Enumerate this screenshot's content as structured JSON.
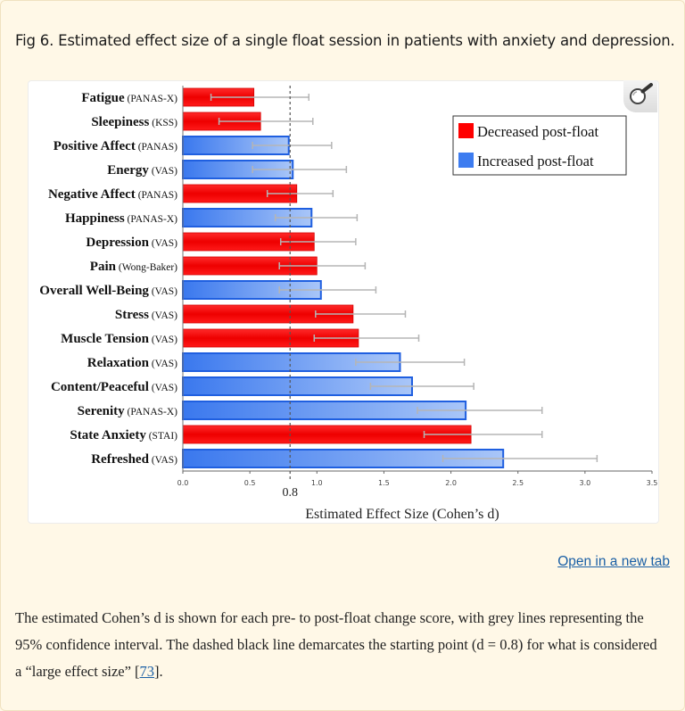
{
  "caption": {
    "title": "Fig 6. Estimated effect size of a single float session in patients with anxiety and depression.",
    "body_before_ref": "The estimated Cohen’s d is shown for each pre- to post-float change score, with grey lines representing the 95% confidence interval. The dashed black line demarcates the starting point (d = 0.8) for what is considered a “large effect size” [",
    "ref": "73",
    "body_after_ref": "]."
  },
  "open_link": "Open in a new tab",
  "zoom_icon": "magnifier-icon",
  "colors": {
    "decreased": "#ff0000",
    "increased": "#3d7cf0",
    "ci": "#b5b5b5",
    "refline": "#555555"
  },
  "chart_data": {
    "type": "bar",
    "orientation": "horizontal",
    "xlabel": "Estimated Effect Size (Cohen’s d)",
    "xlim": [
      0,
      3.5
    ],
    "xticks": [
      "0.0",
      "0.5",
      "1.0",
      "1.5",
      "2.0",
      "2.5",
      "3.0",
      "3.5"
    ],
    "reference_line": {
      "value": 0.8,
      "label": "0.8",
      "style": "dashed"
    },
    "legend": {
      "position": "top-right",
      "entries": [
        "Decreased post-float",
        "Increased post-float"
      ]
    },
    "bars": [
      {
        "label": "Fatigue",
        "scale": "(PANAS-X)",
        "value": 0.53,
        "ci": [
          0.21,
          0.94
        ],
        "direction": "decreased"
      },
      {
        "label": "Sleepiness",
        "scale": "(KSS)",
        "value": 0.58,
        "ci": [
          0.27,
          0.97
        ],
        "direction": "decreased"
      },
      {
        "label": "Positive Affect",
        "scale": "(PANAS)",
        "value": 0.79,
        "ci": [
          0.52,
          1.11
        ],
        "direction": "increased"
      },
      {
        "label": "Energy",
        "scale": "(VAS)",
        "value": 0.82,
        "ci": [
          0.52,
          1.22
        ],
        "direction": "increased"
      },
      {
        "label": "Negative Affect",
        "scale": "(PANAS)",
        "value": 0.85,
        "ci": [
          0.63,
          1.12
        ],
        "direction": "decreased"
      },
      {
        "label": "Happiness",
        "scale": "(PANAS-X)",
        "value": 0.96,
        "ci": [
          0.69,
          1.3
        ],
        "direction": "increased"
      },
      {
        "label": "Depression",
        "scale": "(VAS)",
        "value": 0.98,
        "ci": [
          0.73,
          1.29
        ],
        "direction": "decreased"
      },
      {
        "label": "Pain",
        "scale": "(Wong-Baker)",
        "value": 1.0,
        "ci": [
          0.72,
          1.36
        ],
        "direction": "decreased"
      },
      {
        "label": "Overall Well-Being",
        "scale": "(VAS)",
        "value": 1.03,
        "ci": [
          0.72,
          1.44
        ],
        "direction": "increased"
      },
      {
        "label": "Stress",
        "scale": "(VAS)",
        "value": 1.27,
        "ci": [
          0.99,
          1.66
        ],
        "direction": "decreased"
      },
      {
        "label": "Muscle Tension",
        "scale": "(VAS)",
        "value": 1.31,
        "ci": [
          0.98,
          1.76
        ],
        "direction": "decreased"
      },
      {
        "label": "Relaxation",
        "scale": "(VAS)",
        "value": 1.62,
        "ci": [
          1.29,
          2.1
        ],
        "direction": "increased"
      },
      {
        "label": "Content/Peaceful",
        "scale": "(VAS)",
        "value": 1.71,
        "ci": [
          1.4,
          2.17
        ],
        "direction": "increased"
      },
      {
        "label": "Serenity",
        "scale": "(PANAS-X)",
        "value": 2.11,
        "ci": [
          1.75,
          2.68
        ],
        "direction": "increased"
      },
      {
        "label": "State Anxiety",
        "scale": "(STAI)",
        "value": 2.15,
        "ci": [
          1.8,
          2.68
        ],
        "direction": "decreased"
      },
      {
        "label": "Refreshed",
        "scale": "(VAS)",
        "value": 2.39,
        "ci": [
          1.94,
          3.09
        ],
        "direction": "increased"
      }
    ]
  }
}
